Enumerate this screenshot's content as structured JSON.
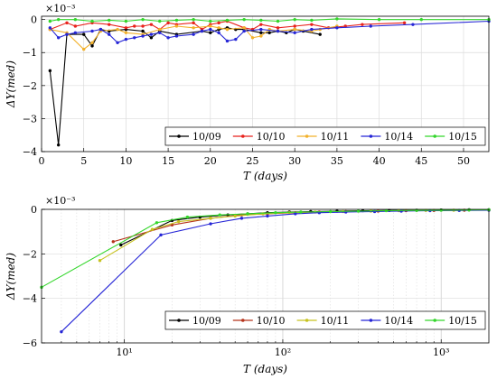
{
  "chart_data": [
    {
      "type": "line",
      "xscale": "linear",
      "xlabel": "T (days)",
      "ylabel": "ΔY(med)",
      "y_multiplier": "×10⁻³",
      "xlim": [
        0,
        53
      ],
      "ylim": [
        -4,
        0.1
      ],
      "xticks": [
        0,
        5,
        10,
        15,
        20,
        25,
        30,
        35,
        40,
        45,
        50
      ],
      "xtick_labels": [
        "0",
        "5",
        "10",
        "15",
        "20",
        "25",
        "30",
        "35",
        "40",
        "45",
        "50"
      ],
      "yticks": [
        -4,
        -3,
        -2,
        -1,
        0
      ],
      "ytick_labels": [
        "−4",
        "−3",
        "−2",
        "−1",
        "0"
      ],
      "grid": "both",
      "legend_position": "bottom-right, horizontal",
      "series": [
        {
          "name": "10/09",
          "color": "#000000",
          "x": [
            1,
            2,
            3,
            5,
            6,
            7,
            8,
            10,
            12,
            13,
            14,
            16,
            19,
            20,
            21,
            22,
            23,
            24,
            26,
            27,
            28,
            29,
            30,
            31,
            33
          ],
          "y": [
            -1.55,
            -3.8,
            -0.45,
            -0.45,
            -0.8,
            -0.3,
            -0.35,
            -0.3,
            -0.35,
            -0.55,
            -0.35,
            -0.45,
            -0.35,
            -0.4,
            -0.3,
            -0.25,
            -0.3,
            -0.3,
            -0.4,
            -0.4,
            -0.35,
            -0.4,
            -0.3,
            -0.35,
            -0.45
          ]
        },
        {
          "name": "10/10",
          "color": "#e8221c",
          "x": [
            1,
            3,
            4,
            6,
            8,
            10,
            11,
            12,
            13,
            14,
            15,
            16,
            18,
            19,
            20,
            21,
            22,
            24,
            25,
            26,
            28,
            30,
            32,
            34,
            36,
            38,
            43
          ],
          "y": [
            -0.3,
            -0.1,
            -0.2,
            -0.1,
            -0.15,
            -0.25,
            -0.2,
            -0.2,
            -0.15,
            -0.3,
            -0.1,
            -0.15,
            -0.1,
            -0.3,
            -0.15,
            -0.1,
            -0.05,
            -0.25,
            -0.3,
            -0.15,
            -0.25,
            -0.2,
            -0.15,
            -0.25,
            -0.2,
            -0.15,
            -0.1
          ]
        },
        {
          "name": "10/11",
          "color": "#f2b12b",
          "x": [
            1,
            3,
            5,
            6,
            7,
            9,
            10,
            12,
            14,
            16,
            18,
            20,
            21,
            22,
            24,
            25,
            26,
            27,
            28,
            30,
            32,
            33,
            35
          ],
          "y": [
            -0.3,
            -0.4,
            -0.9,
            -0.7,
            -0.35,
            -0.3,
            -0.4,
            -0.45,
            -0.3,
            -0.2,
            -0.25,
            -0.2,
            -0.25,
            -0.3,
            -0.25,
            -0.55,
            -0.5,
            -0.3,
            -0.35,
            -0.3,
            -0.35,
            -0.3,
            -0.2
          ]
        },
        {
          "name": "10/14",
          "color": "#2626d6",
          "x": [
            1,
            2,
            3,
            4,
            6,
            7,
            8,
            9,
            10,
            11,
            12,
            13,
            14,
            15,
            16,
            18,
            19,
            20,
            21,
            22,
            23,
            24,
            26,
            28,
            30,
            32,
            35,
            39,
            44,
            53
          ],
          "y": [
            -0.25,
            -0.55,
            -0.45,
            -0.4,
            -0.35,
            -0.3,
            -0.45,
            -0.7,
            -0.6,
            -0.55,
            -0.5,
            -0.45,
            -0.4,
            -0.55,
            -0.5,
            -0.45,
            -0.35,
            -0.3,
            -0.4,
            -0.65,
            -0.6,
            -0.35,
            -0.3,
            -0.35,
            -0.4,
            -0.3,
            -0.25,
            -0.2,
            -0.15,
            -0.05
          ]
        },
        {
          "name": "10/15",
          "color": "#33d62b",
          "x": [
            1,
            2,
            4,
            6,
            8,
            10,
            12,
            14,
            16,
            18,
            20,
            22,
            24,
            26,
            28,
            30,
            32,
            35,
            40,
            45,
            53
          ],
          "y": [
            -0.05,
            0,
            0,
            -0.05,
            -0.02,
            -0.05,
            0,
            -0.05,
            -0.02,
            0,
            -0.05,
            -0.02,
            0,
            -0.02,
            -0.05,
            0,
            -0.02,
            0.02,
            0,
            0,
            0
          ]
        }
      ]
    },
    {
      "type": "line",
      "xscale": "log",
      "xlabel": "T (days)",
      "ylabel": "ΔY(med)",
      "y_multiplier": "×10⁻³",
      "xlim": [
        3,
        2000
      ],
      "ylim": [
        -6,
        0
      ],
      "xticks": [
        10,
        100,
        1000
      ],
      "xtick_labels": [
        "10¹",
        "10²",
        "10³"
      ],
      "yticks": [
        -6,
        -4,
        -2,
        0
      ],
      "ytick_labels": [
        "−6",
        "−4",
        "−2",
        "0"
      ],
      "grid": "both",
      "legend_position": "bottom-right, horizontal",
      "series": [
        {
          "name": "10/09",
          "color": "#000000",
          "x": [
            9.5,
            20,
            30,
            45,
            60,
            80,
            110,
            150,
            220,
            320,
            470,
            700,
            1000,
            1500,
            2000
          ],
          "y": [
            -1.6,
            -0.5,
            -0.35,
            -0.25,
            -0.2,
            -0.15,
            -0.12,
            -0.1,
            -0.08,
            -0.06,
            -0.05,
            -0.04,
            -0.03,
            -0.02,
            -0.02
          ]
        },
        {
          "name": "10/10",
          "color": "#b5331b",
          "x": [
            8.5,
            20,
            35,
            55,
            80,
            120,
            170,
            250,
            400,
            600,
            900,
            1400,
            2000
          ],
          "y": [
            -1.45,
            -0.7,
            -0.4,
            -0.25,
            -0.2,
            -0.15,
            -0.12,
            -0.1,
            -0.08,
            -0.06,
            -0.05,
            -0.04,
            -0.03
          ]
        },
        {
          "name": "10/11",
          "color": "#c7c21f",
          "x": [
            7,
            15,
            22,
            35,
            50,
            75,
            110,
            160,
            240,
            360,
            540,
            800,
            1200,
            2000
          ],
          "y": [
            -2.3,
            -0.9,
            -0.55,
            -0.4,
            -0.3,
            -0.2,
            -0.15,
            -0.12,
            -0.1,
            -0.08,
            -0.06,
            -0.05,
            -0.04,
            -0.03
          ]
        },
        {
          "name": "10/14",
          "color": "#2626d6",
          "x": [
            4,
            17,
            35,
            55,
            80,
            120,
            170,
            250,
            380,
            560,
            850,
            1300,
            2000
          ],
          "y": [
            -5.5,
            -1.15,
            -0.65,
            -0.4,
            -0.3,
            -0.2,
            -0.15,
            -0.12,
            -0.1,
            -0.08,
            -0.06,
            -0.05,
            -0.04
          ]
        },
        {
          "name": "10/15",
          "color": "#33d62b",
          "x": [
            3,
            16,
            25,
            40,
            60,
            90,
            130,
            200,
            300,
            450,
            700,
            1000,
            1500,
            2000
          ],
          "y": [
            -3.5,
            -0.6,
            -0.35,
            -0.25,
            -0.2,
            -0.15,
            -0.12,
            -0.1,
            -0.08,
            -0.06,
            -0.05,
            -0.04,
            -0.03,
            -0.02
          ]
        }
      ]
    }
  ]
}
